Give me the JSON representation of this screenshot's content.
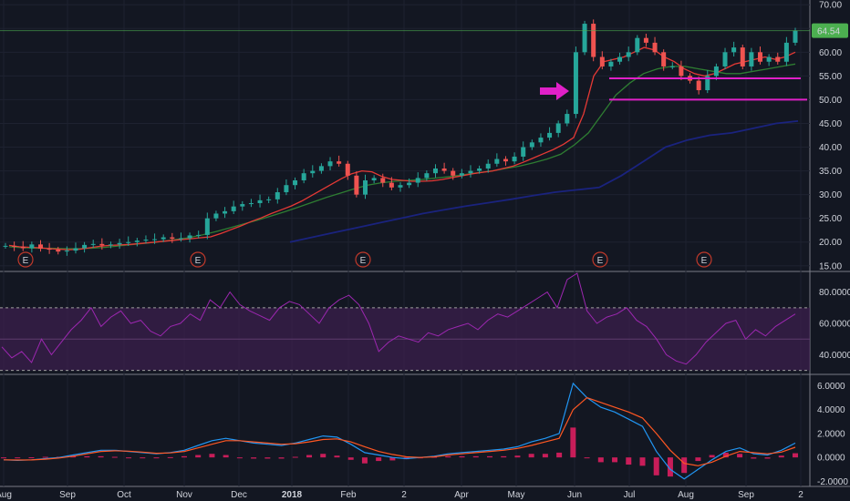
{
  "chart_data": [
    {
      "type": "candlestick",
      "panel": "price",
      "ylim": [
        14,
        71
      ],
      "y_ticks": [
        15,
        20,
        25,
        30,
        35,
        40,
        45,
        50,
        55,
        60,
        65,
        70
      ],
      "y_tick_labels": [
        "15.00",
        "20.00",
        "25.00",
        "30.00",
        "35.00",
        "40.00",
        "45.00",
        "50.00",
        "55.00",
        "60.00",
        "65.00",
        "70.00"
      ],
      "last_price": 64.54,
      "last_price_label": "64.54",
      "close_series": [
        19.2,
        19.0,
        18.7,
        19.5,
        18.6,
        18.4,
        18.0,
        18.2,
        18.7,
        19.4,
        19.6,
        19.3,
        19.5,
        19.8,
        20.0,
        20.3,
        20.5,
        20.6,
        21.0,
        20.7,
        20.8,
        21.4,
        21.5,
        25.0,
        26.0,
        26.5,
        27.5,
        28.0,
        28.2,
        28.8,
        29.0,
        30.5,
        32.0,
        33.0,
        34.5,
        35.0,
        36.0,
        37.0,
        36.5,
        34.0,
        30.0,
        33.0,
        33.5,
        32.5,
        31.5,
        32.0,
        32.5,
        33.5,
        34.5,
        35.5,
        35.0,
        34.0,
        34.5,
        35.0,
        35.5,
        36.5,
        37.5,
        37.0,
        38.0,
        40.0,
        41.0,
        42.0,
        43.0,
        45.0,
        47.0,
        60.0,
        66.0,
        59.0,
        57.0,
        58.0,
        59.0,
        60.0,
        63.0,
        62.0,
        60.0,
        57.0,
        57.0,
        55.0,
        54.0,
        52.0,
        55.0,
        57.0,
        60.0,
        61.0,
        57.0,
        60.0,
        58.0,
        59.0,
        58.0,
        62.0,
        64.54
      ],
      "sma_short": [
        19.3,
        19.0,
        18.9,
        18.8,
        18.6,
        18.5,
        18.4,
        18.5,
        18.8,
        19.1,
        19.3,
        19.4,
        19.5,
        19.7,
        19.9,
        20.1,
        20.3,
        20.5,
        20.7,
        20.9,
        21.1,
        21.8,
        22.6,
        23.4,
        24.3,
        25.1,
        26.0,
        26.8,
        27.6,
        28.6,
        29.8,
        31.0,
        32.2,
        33.4,
        34.4,
        35.0,
        34.8,
        33.8,
        33.2,
        33.0,
        32.8,
        32.8,
        32.9,
        33.2,
        33.6,
        34.0,
        34.4,
        34.7,
        35.0,
        35.5,
        36.0,
        36.8,
        37.7,
        38.6,
        39.5,
        40.6,
        42.0,
        47.0,
        55.0,
        58.0,
        58.5,
        59.0,
        60.0,
        61.0,
        60.5,
        59.0,
        58.0,
        56.5,
        55.5,
        55.0,
        55.5,
        56.5,
        57.5,
        58.0,
        58.5,
        59.0,
        58.5,
        59.0,
        60.0
      ],
      "sma_mid": [
        19.0,
        18.8,
        18.7,
        18.7,
        18.6,
        18.6,
        18.7,
        18.9,
        19.2,
        19.5,
        19.8,
        20.1,
        20.5,
        20.9,
        21.5,
        22.2,
        23.0,
        23.8,
        24.6,
        25.5,
        26.4,
        27.4,
        28.4,
        29.4,
        30.3,
        31.2,
        32.0,
        32.5,
        32.8,
        33.0,
        33.2,
        33.5,
        33.8,
        34.2,
        34.6,
        35.0,
        35.5,
        36.0,
        36.7,
        37.5,
        38.5,
        40.5,
        43.0,
        47.0,
        51.0,
        53.5,
        55.5,
        56.5,
        57.0,
        57.0,
        56.5,
        56.0,
        55.5,
        55.5,
        56.0,
        56.5,
        57.0,
        57.5
      ],
      "sma_long": [
        20.0,
        21.0,
        22.0,
        23.0,
        24.0,
        25.0,
        26.0,
        26.8,
        27.6,
        28.3,
        29.0,
        29.8,
        30.5,
        31.0,
        31.5,
        34.0,
        37.0,
        40.0,
        41.5,
        42.5,
        43.0,
        44.0,
        45.0,
        45.5
      ],
      "earnings_markers": [
        "E",
        "E",
        "E",
        "E",
        "E"
      ],
      "annotations": {
        "support_lines": [
          54.5,
          50.0
        ],
        "arrow": "pink arrow pointing right"
      }
    },
    {
      "type": "line",
      "panel": "rsi",
      "ylim": [
        28,
        92
      ],
      "y_tick_labels": [
        "80.0000",
        "60.0000",
        "40.0000"
      ],
      "band": [
        30,
        70
      ],
      "values": [
        45,
        38,
        42,
        35,
        50,
        40,
        48,
        56,
        62,
        70,
        58,
        64,
        68,
        60,
        62,
        55,
        52,
        58,
        60,
        66,
        62,
        75,
        70,
        80,
        72,
        68,
        65,
        62,
        70,
        74,
        72,
        66,
        60,
        70,
        75,
        78,
        72,
        60,
        42,
        48,
        52,
        50,
        48,
        54,
        52,
        56,
        58,
        60,
        56,
        62,
        66,
        64,
        68,
        72,
        76,
        80,
        70,
        88,
        92,
        68,
        60,
        64,
        66,
        70,
        62,
        58,
        50,
        40,
        36,
        34,
        40,
        48,
        54,
        60,
        62,
        50,
        56,
        52,
        58,
        62,
        66
      ]
    },
    {
      "type": "line",
      "panel": "macd",
      "ylim": [
        -2.2,
        6.8
      ],
      "y_tick_labels": [
        "6.0000",
        "4.0000",
        "2.0000",
        "0.0000",
        "-2.0000"
      ],
      "series": [
        {
          "values": [
            -0.2,
            -0.25,
            -0.2,
            -0.1,
            0.0,
            0.2,
            0.4,
            0.6,
            0.6,
            0.5,
            0.4,
            0.3,
            0.4,
            0.6,
            1.0,
            1.4,
            1.6,
            1.4,
            1.2,
            1.1,
            1.0,
            1.2,
            1.5,
            1.8,
            1.7,
            1.1,
            0.4,
            0.2,
            0.0,
            -0.1,
            0.0,
            0.1,
            0.3,
            0.4,
            0.5,
            0.6,
            0.7,
            0.9,
            1.3,
            1.6,
            2.0,
            6.2,
            5.0,
            4.2,
            3.8,
            3.2,
            2.6,
            0.5,
            -1.0,
            -1.8,
            -1.0,
            -0.2,
            0.5,
            0.8,
            0.3,
            0.2,
            0.6,
            1.2
          ]
        },
        {
          "values": [
            -0.2,
            -0.22,
            -0.21,
            -0.15,
            -0.05,
            0.1,
            0.3,
            0.5,
            0.55,
            0.52,
            0.45,
            0.35,
            0.38,
            0.5,
            0.8,
            1.1,
            1.4,
            1.4,
            1.3,
            1.2,
            1.1,
            1.15,
            1.3,
            1.5,
            1.55,
            1.3,
            0.9,
            0.5,
            0.25,
            0.05,
            0.0,
            0.05,
            0.2,
            0.3,
            0.4,
            0.5,
            0.6,
            0.75,
            1.0,
            1.3,
            1.6,
            4.0,
            5.0,
            4.6,
            4.2,
            3.8,
            3.3,
            2.0,
            0.6,
            -0.5,
            -0.7,
            -0.4,
            0.1,
            0.5,
            0.4,
            0.3,
            0.45,
            0.85
          ]
        }
      ],
      "histogram": [
        0.0,
        -0.03,
        0.01,
        0.05,
        0.05,
        0.1,
        0.1,
        0.1,
        0.05,
        -0.02,
        -0.05,
        -0.05,
        0.02,
        0.1,
        0.2,
        0.3,
        0.2,
        0.0,
        -0.1,
        -0.1,
        -0.1,
        0.05,
        0.2,
        0.3,
        0.15,
        -0.2,
        -0.5,
        -0.3,
        -0.25,
        -0.15,
        0.0,
        0.05,
        0.1,
        0.1,
        0.1,
        0.1,
        0.1,
        0.15,
        0.3,
        0.3,
        0.4,
        2.5,
        0.0,
        -0.4,
        -0.4,
        -0.6,
        -0.7,
        -1.5,
        -1.6,
        -1.3,
        -0.3,
        0.2,
        0.4,
        0.3,
        -0.1,
        -0.1,
        0.15,
        0.35
      ]
    }
  ],
  "x_axis": {
    "labels": [
      "Aug",
      "Sep",
      "Oct",
      "Nov",
      "Dec",
      "2018",
      "Feb",
      "2",
      "Apr",
      "May",
      "Jun",
      "Jul",
      "Aug",
      "Sep",
      "2"
    ]
  },
  "colors": {
    "background": "#131722",
    "up": "#26a69a",
    "down": "#ef5350",
    "sma_short": "#e53935",
    "sma_mid": "#2e7d32",
    "sma_long": "#1a237e",
    "rsi_line": "#9c27b0",
    "rsi_band": "#3d1f4e",
    "macd_line": "#2196f3",
    "signal_line": "#ff5722",
    "histogram": "#e91e63",
    "annotation": "#e020c8",
    "last_price_badge": "#4caf50"
  }
}
